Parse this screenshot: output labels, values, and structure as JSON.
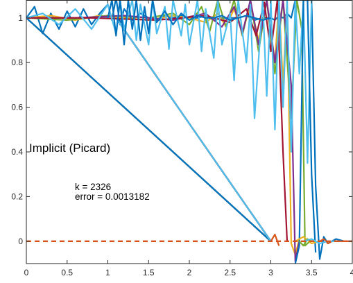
{
  "chart_data": {
    "type": "line",
    "title": "",
    "xlabel": "",
    "ylabel": "",
    "xlim": [
      0,
      4
    ],
    "ylim": [
      -0.1,
      1.08
    ],
    "grid": false,
    "xticks": [
      0,
      0.5,
      1,
      1.5,
      2,
      2.5,
      3,
      3.5,
      4
    ],
    "xtick_labels": [
      "0",
      "0.5",
      "1",
      "1.5",
      "2",
      "2.5",
      "3",
      "3.5",
      "4"
    ],
    "yticks": [
      0,
      0.2,
      0.4,
      0.6,
      0.8,
      1
    ],
    "ytick_labels": [
      "0",
      "0.2",
      "0.4",
      "0.6",
      "0.8",
      "1"
    ],
    "annotations": {
      "method": "Implicit (Picard)",
      "iteration": "k = 2326",
      "error": "error = 0.0013182"
    },
    "colors": [
      "#0072bd",
      "#d95319",
      "#edb120",
      "#7e2f8e",
      "#77ac30",
      "#4dbeee",
      "#a2142f"
    ],
    "reference_line": {
      "name": "",
      "x": [
        0,
        4
      ],
      "y": [
        0,
        0
      ],
      "color": "#d95319",
      "style": "dashed"
    },
    "series": [
      {
        "color": "#0072bd",
        "x": [
          0,
          0.1,
          0.2,
          0.3,
          0.4,
          0.5,
          0.6,
          0.7,
          0.8,
          0.9,
          1.0,
          1.05,
          1.1,
          1.15,
          1.2,
          1.3,
          1.4,
          1.5,
          1.6,
          1.7,
          1.8,
          1.9,
          2.0,
          2.1,
          2.2,
          2.3,
          2.4,
          2.5,
          2.6,
          2.7,
          2.8,
          2.9,
          3.0,
          3.05,
          3.1,
          3.15,
          3.2,
          3.25,
          3.3,
          3.35,
          3.4,
          3.45,
          3.5,
          3.55,
          3.6,
          3.65,
          3.7,
          3.8,
          3.9,
          4.0
        ],
        "y": [
          1.0,
          1.05,
          0.93,
          1.02,
          0.95,
          1.03,
          0.96,
          1.04,
          0.97,
          1.02,
          1.06,
          0.99,
          1.09,
          0.97,
          1.04,
          0.99,
          1.02,
          1.0,
          0.99,
          1.01,
          1.0,
          1.01,
          1.0,
          1.0,
          1.01,
          0.99,
          1.0,
          1.0,
          1.0,
          1.01,
          0.99,
          1.0,
          1.0,
          0.99,
          1.01,
          1.0,
          1.02,
          1.0,
          1.08,
          1.08,
          1.08,
          1.08,
          1.08,
          0.25,
          -0.08,
          0.02,
          -0.01,
          0.01,
          0.0,
          0.0
        ]
      },
      {
        "color": "#0072bd",
        "x": [
          0,
          3.0
        ],
        "y": [
          1.0,
          0.0
        ]
      },
      {
        "color": "#d95319",
        "x": [
          0,
          3.0,
          3.05,
          3.1
        ],
        "y": [
          1.0,
          0.0,
          0.03,
          -0.02
        ]
      },
      {
        "color": "#edb120",
        "x": [
          0,
          3.0
        ],
        "y": [
          1.0,
          0.0
        ]
      },
      {
        "color": "#7e2f8e",
        "x": [
          0,
          3.0
        ],
        "y": [
          1.0,
          0.0
        ]
      },
      {
        "color": "#77ac30",
        "x": [
          0,
          3.0
        ],
        "y": [
          1.0,
          0.0
        ]
      },
      {
        "color": "#4dbeee",
        "x": [
          0,
          3.0
        ],
        "y": [
          1.0,
          0.0
        ]
      },
      {
        "color": "#0072bd",
        "x": [
          0,
          3.0
        ],
        "y": [
          1.0,
          0.0
        ]
      },
      {
        "color": "#d95319",
        "x": [
          0,
          1.1,
          3.0
        ],
        "y": [
          1.0,
          1.0,
          0.0
        ]
      },
      {
        "color": "#edb120",
        "x": [
          0,
          1.1,
          3.0
        ],
        "y": [
          1.0,
          1.0,
          0.0
        ]
      },
      {
        "color": "#7e2f8e",
        "x": [
          0,
          1.1,
          3.0
        ],
        "y": [
          1.0,
          1.0,
          0.0
        ]
      },
      {
        "color": "#77ac30",
        "x": [
          0,
          1.1,
          3.0
        ],
        "y": [
          1.0,
          1.0,
          0.0
        ]
      },
      {
        "color": "#4dbeee",
        "x": [
          0,
          1.1,
          3.0
        ],
        "y": [
          1.0,
          1.0,
          0.0
        ]
      },
      {
        "color": "#a2142f",
        "x": [
          0,
          1.1,
          3.0
        ],
        "y": [
          1.0,
          1.0,
          0.0
        ]
      },
      {
        "color": "#0072bd",
        "x": [
          0,
          1.1,
          3.0
        ],
        "y": [
          1.0,
          1.0,
          0.0
        ]
      },
      {
        "color": "#77ac30",
        "x": [
          0,
          1.1,
          3.0
        ],
        "y": [
          1.0,
          1.0,
          0.0
        ]
      },
      {
        "color": "#4dbeee",
        "x": [
          0,
          1.1,
          3.0
        ],
        "y": [
          1.0,
          1.0,
          0.0
        ]
      },
      {
        "color": "#0072bd",
        "x": [
          0,
          1.1,
          3.0
        ],
        "y": [
          1.0,
          1.0,
          0.0
        ]
      },
      {
        "color": "#edb120",
        "x": [
          0,
          1.1,
          3.0
        ],
        "y": [
          1.0,
          1.0,
          0.0
        ]
      },
      {
        "color": "#7e2f8e",
        "x": [
          0,
          1.1,
          3.0
        ],
        "y": [
          1.0,
          1.0,
          0.0
        ]
      },
      {
        "color": "#4dbeee",
        "x": [
          0,
          1.1,
          3.0
        ],
        "y": [
          1.0,
          1.0,
          0.0
        ]
      },
      {
        "color": "#edb120",
        "x": [
          0,
          0.3,
          0.6,
          0.9,
          1.2,
          1.5,
          1.8,
          2.0,
          2.2,
          2.35,
          2.45,
          2.55,
          2.65,
          2.75,
          2.85,
          2.95,
          3.05,
          3.1,
          3.15,
          3.2,
          3.25,
          3.3,
          3.35
        ],
        "y": [
          1.0,
          1.01,
          0.99,
          1.01,
          1.0,
          0.99,
          1.01,
          1.0,
          0.98,
          1.02,
          0.96,
          1.04,
          0.93,
          1.06,
          0.9,
          1.08,
          0.8,
          1.08,
          0.7,
          1.08,
          -0.01,
          -0.06,
          0.01
        ]
      },
      {
        "color": "#77ac30",
        "x": [
          0,
          0.5,
          1.0,
          1.5,
          1.8,
          2.0,
          2.15,
          2.25,
          2.35,
          2.45,
          2.55,
          2.65,
          2.75,
          2.85,
          2.95,
          3.05,
          3.15,
          3.25,
          3.32,
          3.38,
          3.42,
          3.48
        ],
        "y": [
          1.0,
          0.99,
          1.01,
          1.0,
          1.02,
          0.97,
          1.05,
          0.94,
          1.08,
          0.96,
          1.08,
          0.92,
          1.08,
          0.85,
          1.08,
          0.75,
          1.08,
          0.55,
          1.08,
          0.95,
          -0.02,
          0.0
        ]
      },
      {
        "color": "#7e2f8e",
        "x": [
          0,
          0.6,
          1.2,
          1.8,
          2.2,
          2.4,
          2.55,
          2.65,
          2.75,
          2.85,
          2.95,
          3.05,
          3.15,
          3.25,
          3.3,
          3.35
        ],
        "y": [
          1.0,
          1.0,
          1.01,
          0.99,
          1.02,
          0.96,
          1.05,
          0.93,
          1.08,
          0.88,
          1.08,
          0.8,
          1.08,
          0.7,
          -0.09,
          0.0
        ]
      },
      {
        "color": "#a2142f",
        "x": [
          0,
          0.8,
          1.6,
          2.2,
          2.5,
          2.7,
          2.82,
          2.92,
          3.0,
          3.08,
          3.15,
          3.2
        ],
        "y": [
          1.0,
          1.0,
          0.99,
          1.01,
          0.98,
          1.04,
          0.92,
          1.07,
          0.85,
          1.08,
          0.4,
          0.0
        ]
      },
      {
        "color": "#4dbeee",
        "x": [
          0,
          0.2,
          0.4,
          0.6,
          0.8,
          1.0,
          1.1,
          1.15,
          1.2,
          1.3,
          1.35,
          1.4,
          1.5,
          1.55,
          1.6,
          1.7,
          1.75,
          1.8,
          1.9,
          1.95,
          2.0,
          2.1,
          2.15,
          2.2,
          2.3,
          2.35,
          2.4,
          2.5,
          2.55,
          2.6,
          2.7,
          2.75,
          2.8,
          2.9,
          2.95,
          3.0,
          3.05,
          3.1,
          3.15,
          3.2,
          3.25,
          3.3,
          3.35,
          3.4,
          3.45,
          3.5
        ],
        "y": [
          1.0,
          1.02,
          0.97,
          1.04,
          0.95,
          1.06,
          0.93,
          1.08,
          0.95,
          1.08,
          0.9,
          1.06,
          0.88,
          1.08,
          0.93,
          1.05,
          0.86,
          1.08,
          0.92,
          1.06,
          0.88,
          1.08,
          0.85,
          1.04,
          0.82,
          1.08,
          0.88,
          1.02,
          0.72,
          1.08,
          0.8,
          1.06,
          0.55,
          1.08,
          0.65,
          1.08,
          0.5,
          1.08,
          0.6,
          1.08,
          0.4,
          1.08,
          0.75,
          1.08,
          0.35,
          1.08
        ]
      },
      {
        "color": "#0072bd",
        "x": [
          1.0,
          1.05,
          1.1,
          1.15,
          1.2,
          1.25,
          1.3,
          1.35,
          1.4,
          1.45,
          1.5,
          1.55,
          1.6,
          1.7,
          1.8,
          1.9,
          2.0,
          2.1,
          2.2,
          2.3,
          2.4,
          2.5,
          2.6,
          2.7,
          2.8,
          2.9,
          3.0
        ],
        "y": [
          1.0,
          1.08,
          0.92,
          1.08,
          0.88,
          1.08,
          0.95,
          1.08,
          0.9,
          1.05,
          0.93,
          1.08,
          0.98,
          1.03,
          0.97,
          1.02,
          0.99,
          1.01,
          1.0,
          1.0,
          1.01,
          0.99,
          1.0,
          1.01,
          1.0,
          0.99,
          1.0
        ]
      },
      {
        "color": "#0072bd",
        "x": [
          3.3,
          3.35,
          3.4,
          3.45,
          3.5,
          3.55
        ],
        "y": [
          -0.1,
          -0.02,
          1.08,
          1.08,
          0.3,
          -0.05
        ]
      },
      {
        "color": "#d95319",
        "x": [
          3.6,
          3.65,
          3.7,
          3.75,
          3.8,
          3.9,
          4.0
        ],
        "y": [
          0.0,
          0.01,
          -0.01,
          0.0,
          0.0,
          0.0,
          0.0
        ]
      },
      {
        "color": "#edb120",
        "x": [
          3.3,
          3.4,
          3.5,
          3.6
        ],
        "y": [
          0.0,
          0.02,
          -0.01,
          0.0
        ]
      },
      {
        "color": "#77ac30",
        "x": [
          3.35,
          3.4,
          3.45,
          3.5,
          3.55
        ],
        "y": [
          0.0,
          -0.02,
          0.01,
          0.0,
          0.0
        ]
      },
      {
        "color": "#4dbeee",
        "x": [
          3.4,
          3.5,
          3.6,
          3.7,
          3.8
        ],
        "y": [
          0.0,
          0.01,
          -0.01,
          0.0,
          0.0
        ]
      }
    ]
  }
}
